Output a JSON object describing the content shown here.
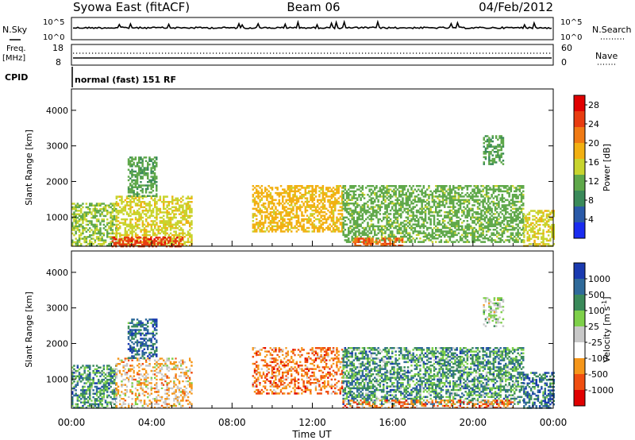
{
  "header": {
    "station": "Syowa East (fitACF)",
    "beam": "Beam 06",
    "date": "04/Feb/2012"
  },
  "top_panels": {
    "nsky_label": "N.Sky",
    "nsky_ticks": [
      "10^5",
      "10^0"
    ],
    "nsearch_label": "N.Search",
    "nsearch_ticks": [
      "10^5",
      "10^0"
    ],
    "freq_label": "Freq.",
    "freq_unit": "[MHz]",
    "freq_ticks": [
      "18",
      "8"
    ],
    "nave_label": "Nave",
    "nave_ticks": [
      "60",
      "0"
    ],
    "cpid_label": "CPID",
    "cpid_text": "normal (fast) 151 RF"
  },
  "colors": {
    "power_scale": [
      "#1a2cf0",
      "#2a5aa8",
      "#3a8a5a",
      "#5fa84a",
      "#c8d42e",
      "#f2b012",
      "#f07a14",
      "#e83c10",
      "#e00000"
    ],
    "velocity_scale": [
      "#e00000",
      "#f04e10",
      "#f5961a",
      "#ffffff",
      "#c8c8c8",
      "#7ed04a",
      "#3a8a5a",
      "#2f6a9a",
      "#1a3ab0"
    ]
  },
  "chart_data": [
    {
      "type": "heatmap",
      "name": "power",
      "xlabel": "",
      "ylabel": "Slant Range [km]",
      "x_ticks": [
        "00:00",
        "04:00",
        "08:00",
        "12:00",
        "16:00",
        "20:00",
        "00:00"
      ],
      "y_ticks": [
        "1000",
        "2000",
        "3000",
        "4000"
      ],
      "xlim_hours": [
        0,
        24
      ],
      "ylim_km": [
        180,
        4600
      ],
      "colorbar_label": "Power [dB]",
      "colorbar_ticks": [
        "4",
        "8",
        "12",
        "16",
        "20",
        "24",
        "28"
      ],
      "colorbar_range": [
        0,
        30
      ],
      "clusters": [
        {
          "t0": 0.0,
          "t1": 2.2,
          "r0": 200,
          "r1": 1400,
          "level": 13
        },
        {
          "t0": 2.2,
          "t1": 6.0,
          "r0": 200,
          "r1": 1600,
          "level": 16
        },
        {
          "t0": 2.8,
          "t1": 4.2,
          "r0": 1600,
          "r1": 2700,
          "level": 10
        },
        {
          "t0": 2.0,
          "t1": 5.5,
          "r0": 200,
          "r1": 450,
          "level": 27
        },
        {
          "t0": 9.0,
          "t1": 13.5,
          "r0": 600,
          "r1": 1900,
          "level": 18
        },
        {
          "t0": 13.5,
          "t1": 22.5,
          "r0": 300,
          "r1": 1900,
          "level": 12
        },
        {
          "t0": 14.0,
          "t1": 16.5,
          "r0": 200,
          "r1": 420,
          "level": 24
        },
        {
          "t0": 20.5,
          "t1": 21.5,
          "r0": 2500,
          "r1": 3300,
          "level": 10
        },
        {
          "t0": 22.5,
          "t1": 24.0,
          "r0": 200,
          "r1": 1200,
          "level": 16
        }
      ]
    },
    {
      "type": "heatmap",
      "name": "velocity",
      "xlabel": "Time UT",
      "ylabel": "Slant Range [km]",
      "x_ticks": [
        "00:00",
        "04:00",
        "08:00",
        "12:00",
        "16:00",
        "20:00",
        "00:00"
      ],
      "y_ticks": [
        "1000",
        "2000",
        "3000",
        "4000"
      ],
      "xlim_hours": [
        0,
        24
      ],
      "ylim_km": [
        180,
        4600
      ],
      "colorbar_label": "Velocity [m s",
      "colorbar_label_sup": "-1",
      "colorbar_label_end": "]",
      "colorbar_ticks": [
        "1000",
        "500",
        "100",
        "25",
        "-25",
        "-100",
        "-500",
        "-1000"
      ],
      "clusters": [
        {
          "t0": 0.0,
          "t1": 2.2,
          "r0": 200,
          "r1": 1400,
          "level": 6
        },
        {
          "t0": 2.2,
          "t1": 6.0,
          "r0": 200,
          "r1": 1600,
          "level": 3
        },
        {
          "t0": 2.8,
          "t1": 4.2,
          "r0": 1600,
          "r1": 2700,
          "level": 7
        },
        {
          "t0": 9.0,
          "t1": 13.5,
          "r0": 600,
          "r1": 1900,
          "level": 2
        },
        {
          "t0": 13.5,
          "t1": 22.5,
          "r0": 300,
          "r1": 1900,
          "level": 6
        },
        {
          "t0": 13.5,
          "t1": 22.0,
          "r0": 200,
          "r1": 420,
          "level": 2
        },
        {
          "t0": 20.5,
          "t1": 21.5,
          "r0": 2500,
          "r1": 3300,
          "level": 4
        },
        {
          "t0": 22.5,
          "t1": 24.0,
          "r0": 200,
          "r1": 1200,
          "level": 7
        }
      ]
    }
  ]
}
